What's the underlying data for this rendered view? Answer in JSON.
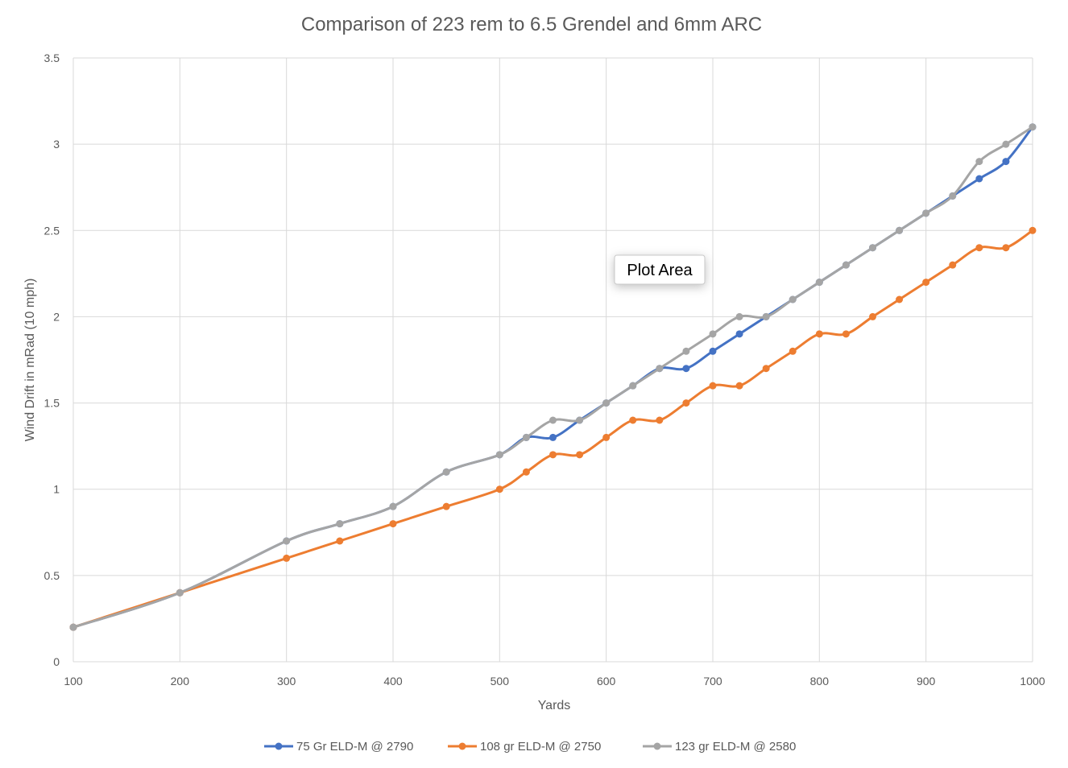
{
  "chart_data": {
    "type": "line",
    "title": "Comparison of 223 rem to 6.5 Grendel and 6mm ARC",
    "xlabel": "Yards",
    "ylabel": "Wind Drift in mRad (10 mph)",
    "xlim": [
      100,
      1000
    ],
    "ylim": [
      0,
      3.5
    ],
    "x_ticks": [
      "100",
      "200",
      "300",
      "400",
      "500",
      "600",
      "700",
      "800",
      "900",
      "1000"
    ],
    "y_ticks": [
      "0",
      "0.5",
      "1",
      "1.5",
      "2",
      "2.5",
      "3",
      "3.5"
    ],
    "grid": true,
    "legend_position": "bottom",
    "tooltip": "Plot Area",
    "series": [
      {
        "name": "75 Gr ELD-M @ 2790",
        "color": "#4472C4",
        "x": [
          100,
          200,
          300,
          350,
          400,
          450,
          500,
          525,
          550,
          575,
          600,
          625,
          650,
          675,
          700,
          725,
          750,
          775,
          800,
          825,
          850,
          875,
          900,
          925,
          950,
          975,
          1000
        ],
        "y": [
          0.2,
          0.4,
          0.7,
          0.8,
          0.9,
          1.1,
          1.2,
          1.3,
          1.3,
          1.4,
          1.5,
          1.6,
          1.7,
          1.7,
          1.8,
          1.9,
          2.0,
          2.1,
          2.2,
          2.3,
          2.4,
          2.5,
          2.6,
          2.7,
          2.8,
          2.9,
          3.1
        ]
      },
      {
        "name": "108 gr ELD-M @ 2750",
        "color": "#ED7D31",
        "x": [
          100,
          200,
          300,
          350,
          400,
          450,
          500,
          525,
          550,
          575,
          600,
          625,
          650,
          675,
          700,
          725,
          750,
          775,
          800,
          825,
          850,
          875,
          900,
          925,
          950,
          975,
          1000
        ],
        "y": [
          0.2,
          0.4,
          0.6,
          0.7,
          0.8,
          0.9,
          1.0,
          1.1,
          1.2,
          1.2,
          1.3,
          1.4,
          1.4,
          1.5,
          1.6,
          1.6,
          1.7,
          1.8,
          1.9,
          1.9,
          2.0,
          2.1,
          2.2,
          2.3,
          2.4,
          2.4,
          2.5
        ]
      },
      {
        "name": "123 gr ELD-M @ 2580",
        "color": "#A5A5A5",
        "x": [
          100,
          200,
          300,
          350,
          400,
          450,
          500,
          525,
          550,
          575,
          600,
          625,
          650,
          675,
          700,
          725,
          750,
          775,
          800,
          825,
          850,
          875,
          900,
          925,
          950,
          975,
          1000
        ],
        "y": [
          0.2,
          0.4,
          0.7,
          0.8,
          0.9,
          1.1,
          1.2,
          1.3,
          1.4,
          1.4,
          1.5,
          1.6,
          1.7,
          1.8,
          1.9,
          2.0,
          2.0,
          2.1,
          2.2,
          2.3,
          2.4,
          2.5,
          2.6,
          2.7,
          2.9,
          3.0,
          3.1
        ]
      }
    ]
  }
}
